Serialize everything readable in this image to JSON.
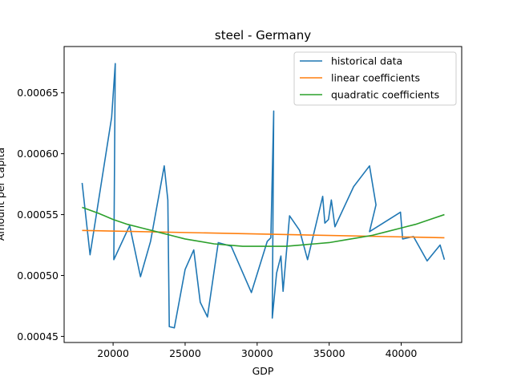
{
  "chart_data": {
    "type": "line",
    "title": "steel - Germany",
    "xlabel": "GDP",
    "ylabel": "Amount per capita",
    "xlim": [
      16600,
      44200
    ],
    "ylim": [
      0.000445,
      0.000688
    ],
    "x_ticks": [
      20000,
      25000,
      30000,
      35000,
      40000
    ],
    "x_tick_labels": [
      "20000",
      "25000",
      "30000",
      "35000",
      "40000"
    ],
    "y_ticks": [
      0.00045,
      0.0005,
      0.00055,
      0.0006,
      0.00065
    ],
    "y_tick_labels": [
      "0.00045",
      "0.00050",
      "0.00055",
      "0.00060",
      "0.00065"
    ],
    "legend_position": "top-right",
    "grid": false,
    "series": [
      {
        "name": "historical data",
        "color": "#1f77b4",
        "x": [
          17850,
          18400,
          19900,
          20150,
          20050,
          21150,
          21900,
          22600,
          23550,
          23800,
          23900,
          24250,
          25000,
          25600,
          26050,
          26550,
          27300,
          28200,
          29600,
          30700,
          30950,
          31150,
          31050,
          31350,
          31650,
          31800,
          32250,
          32950,
          33500,
          34550,
          34700,
          34950,
          35150,
          35400,
          36700,
          37800,
          38250,
          37800,
          39950,
          40100,
          40850,
          41800,
          42700,
          43000
        ],
        "y": [
          0.000576,
          0.000517,
          0.00063,
          0.000674,
          0.000513,
          0.000541,
          0.000499,
          0.000528,
          0.00059,
          0.000562,
          0.000458,
          0.000457,
          0.000505,
          0.000521,
          0.000478,
          0.000466,
          0.000527,
          0.000524,
          0.000486,
          0.000528,
          0.000531,
          0.000635,
          0.000465,
          0.000502,
          0.000516,
          0.000487,
          0.000549,
          0.000537,
          0.000513,
          0.000565,
          0.000543,
          0.000546,
          0.000562,
          0.00054,
          0.000573,
          0.00059,
          0.000558,
          0.000536,
          0.000552,
          0.00053,
          0.000532,
          0.000512,
          0.000525,
          0.000513
        ]
      },
      {
        "name": "linear coefficients",
        "color": "#ff7f0e",
        "x": [
          17850,
          43000
        ],
        "y": [
          0.000537,
          0.000531
        ]
      },
      {
        "name": "quadratic coefficients",
        "color": "#2ca02c",
        "x": [
          17850,
          19000,
          20000,
          21000,
          22000,
          23000,
          24000,
          25000,
          26000,
          27000,
          28000,
          29000,
          30000,
          31000,
          32000,
          33000,
          34000,
          35000,
          36000,
          37000,
          38000,
          39000,
          40000,
          41000,
          42000,
          43000
        ],
        "y": [
          0.000556,
          0.000551,
          0.000546,
          0.000542,
          0.000539,
          0.000536,
          0.000533,
          0.00053,
          0.000528,
          0.000526,
          0.000525,
          0.000524,
          0.000524,
          0.000524,
          0.000524,
          0.000525,
          0.000526,
          0.000527,
          0.000529,
          0.000531,
          0.000533,
          0.000536,
          0.000539,
          0.000542,
          0.000546,
          0.00055
        ]
      }
    ]
  }
}
